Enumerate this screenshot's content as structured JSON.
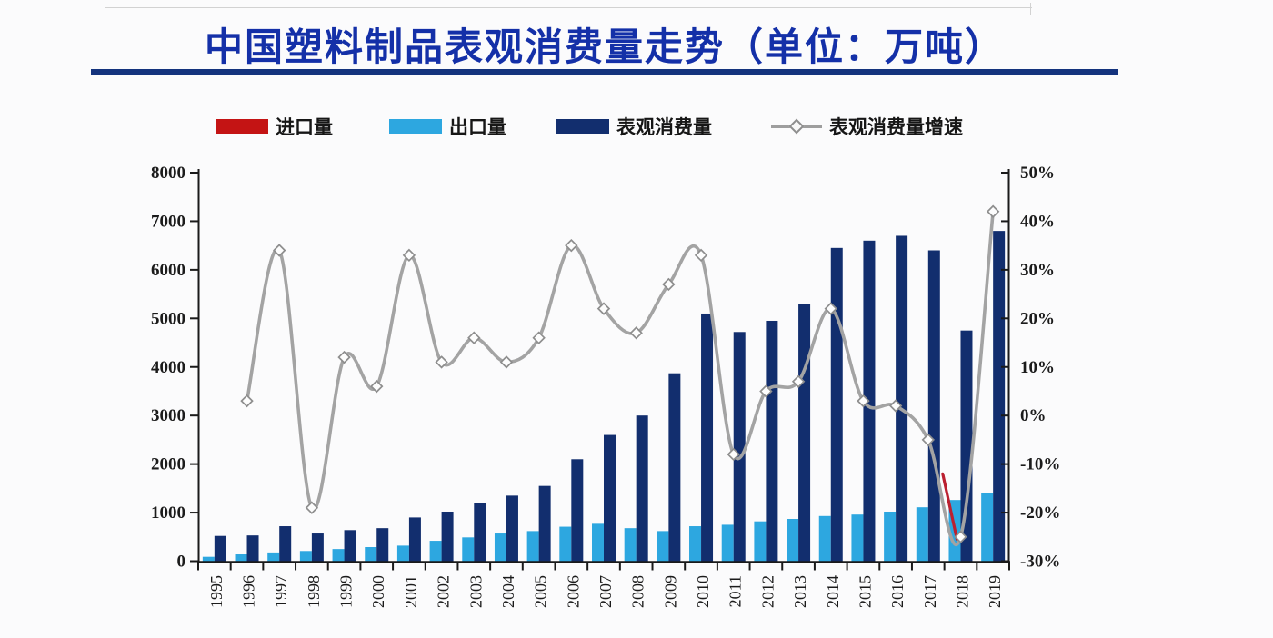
{
  "page": {
    "title": "中国塑料制品表观消费量走势（单位：万吨）"
  },
  "legend": {
    "items": [
      {
        "key": "imports",
        "label": "进口量",
        "swatch": "bar",
        "color": "#c41414"
      },
      {
        "key": "exports",
        "label": "出口量",
        "swatch": "bar",
        "color": "#2da7e0"
      },
      {
        "key": "apparent-consumption",
        "label": "表观消费量",
        "swatch": "bar",
        "color": "#122e6e"
      },
      {
        "key": "growth-rate",
        "label": "表观消费量增速",
        "swatch": "line",
        "color": "#a3a3a3"
      }
    ]
  },
  "chart_data": {
    "type": "bar+line combo, dual axis",
    "title": "中国塑料制品表观消费量走势（单位：万吨）",
    "categories": [
      "1995",
      "1996",
      "1997",
      "1998",
      "1999",
      "2000",
      "2001",
      "2002",
      "2003",
      "2004",
      "2005",
      "2006",
      "2007",
      "2008",
      "2009",
      "2010",
      "2011",
      "2012",
      "2013",
      "2014",
      "2015",
      "2016",
      "2017",
      "2018",
      "2019"
    ],
    "series": [
      {
        "name": "进口量",
        "type": "bar",
        "color": "#c41414",
        "axis": "left",
        "values_not_visible": true,
        "note": "legend entry and a small red stroke near the 2018 dip are the only visible red marks"
      },
      {
        "name": "出口量",
        "type": "bar",
        "color": "#2da7e0",
        "axis": "left",
        "values": [
          90,
          140,
          180,
          210,
          250,
          290,
          320,
          420,
          490,
          570,
          620,
          710,
          770,
          680,
          620,
          720,
          750,
          820,
          870,
          930,
          960,
          1020,
          1110,
          1260,
          1400
        ]
      },
      {
        "name": "表观消费量",
        "type": "bar",
        "color": "#122e6e",
        "axis": "left",
        "values": [
          520,
          530,
          720,
          570,
          640,
          680,
          900,
          1020,
          1200,
          1350,
          1550,
          2100,
          2600,
          3000,
          3870,
          5100,
          4720,
          4950,
          5300,
          6450,
          6600,
          6700,
          6400,
          4750,
          6800
        ]
      },
      {
        "name": "表观消费量增速",
        "type": "line",
        "color": "#a3a3a3",
        "axis": "right",
        "unit": "%",
        "values": [
          null,
          3,
          34,
          -19,
          12,
          6,
          33,
          11,
          16,
          11,
          16,
          35,
          22,
          17,
          27,
          33,
          -8,
          5,
          7,
          22,
          3,
          2,
          -5,
          -25,
          42
        ]
      }
    ],
    "left_axis": {
      "min": 0,
      "max": 8000,
      "step": 1000,
      "ticks": [
        "0",
        "1000",
        "2000",
        "3000",
        "4000",
        "5000",
        "6000",
        "7000",
        "8000"
      ]
    },
    "right_axis": {
      "min": -30,
      "max": 50,
      "step": 10,
      "ticks": [
        "-30%",
        "-20%",
        "-10%",
        "0%",
        "10%",
        "20%",
        "30%",
        "40%",
        "50%"
      ]
    },
    "legend_position": "top",
    "grid": false,
    "marker_style": "open-diamond",
    "red_mark_near_2018_dip": true
  }
}
